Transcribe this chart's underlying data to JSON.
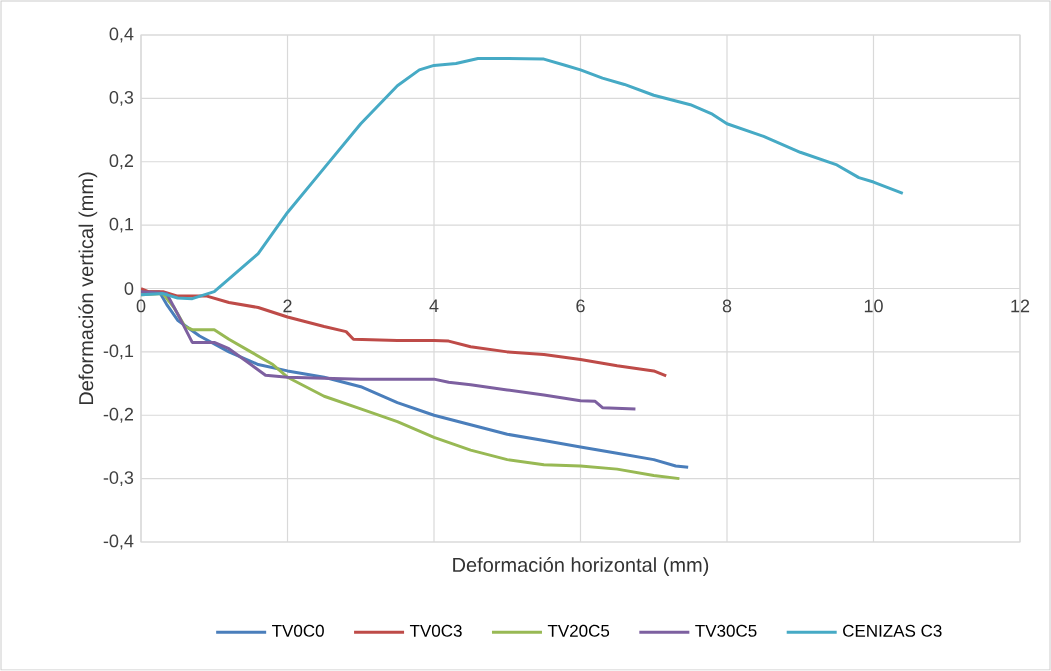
{
  "chart_data": {
    "type": "line",
    "xlabel": "Deformación horizontal (mm)",
    "ylabel": "Deformación vertical (mm)",
    "xlim": [
      0,
      12
    ],
    "xticks": [
      0,
      2,
      4,
      6,
      8,
      10,
      12
    ],
    "ylim": [
      -0.4,
      0.4
    ],
    "yticks": [
      {
        "value": -0.4,
        "label": "-0,4"
      },
      {
        "value": -0.3,
        "label": "-0,3"
      },
      {
        "value": -0.2,
        "label": "-0,2"
      },
      {
        "value": -0.1,
        "label": "-0,1"
      },
      0,
      {
        "value": 0.1,
        "label": "0,1"
      },
      {
        "value": 0.2,
        "label": "0,2"
      },
      {
        "value": 0.3,
        "label": "0,3"
      },
      {
        "value": 0.4,
        "label": "0,4"
      }
    ],
    "grid": true,
    "legend": "bottom",
    "marker": "none",
    "line_style": "solid",
    "series": [
      {
        "name": "TV0C0",
        "color": "#4a7ebb",
        "x": [
          0,
          0.25,
          0.35,
          0.5,
          0.8,
          1.2,
          1.6,
          2,
          2.5,
          3,
          3.5,
          4,
          4.5,
          5,
          5.5,
          6,
          6.5,
          7,
          7.3,
          7.47
        ],
        "values": [
          -0.005,
          -0.005,
          -0.025,
          -0.05,
          -0.075,
          -0.1,
          -0.12,
          -0.13,
          -0.14,
          -0.155,
          -0.18,
          -0.2,
          -0.215,
          -0.23,
          -0.24,
          -0.25,
          -0.26,
          -0.27,
          -0.28,
          -0.282
        ]
      },
      {
        "name": "TV0C3",
        "color": "#be4b48",
        "x": [
          0,
          0.1,
          0.3,
          0.5,
          0.9,
          1.2,
          1.6,
          2,
          2.5,
          2.8,
          2.9,
          3.5,
          4,
          4.2,
          4.5,
          5,
          5.5,
          6,
          6.5,
          7,
          7.17
        ],
        "values": [
          0,
          -0.005,
          -0.005,
          -0.012,
          -0.012,
          -0.022,
          -0.03,
          -0.045,
          -0.06,
          -0.068,
          -0.08,
          -0.082,
          -0.082,
          -0.083,
          -0.092,
          -0.1,
          -0.104,
          -0.112,
          -0.122,
          -0.13,
          -0.138
        ]
      },
      {
        "name": "TV20C5",
        "color": "#98b954",
        "x": [
          0,
          0.3,
          0.45,
          0.6,
          0.7,
          1.0,
          1.2,
          1.5,
          1.8,
          2,
          2.5,
          3,
          3.5,
          4,
          4.5,
          5,
          5.5,
          6,
          6.5,
          7,
          7.35
        ],
        "values": [
          -0.01,
          -0.008,
          -0.03,
          -0.06,
          -0.065,
          -0.065,
          -0.08,
          -0.1,
          -0.12,
          -0.14,
          -0.17,
          -0.19,
          -0.21,
          -0.235,
          -0.255,
          -0.27,
          -0.278,
          -0.28,
          -0.285,
          -0.295,
          -0.3
        ]
      },
      {
        "name": "TV30C5",
        "color": "#7d60a0",
        "x": [
          0,
          0.35,
          0.5,
          0.7,
          1.0,
          1.2,
          1.5,
          1.7,
          2,
          3,
          4,
          4.2,
          4.5,
          5,
          5.5,
          6,
          6.2,
          6.3,
          6.75
        ],
        "values": [
          -0.005,
          -0.008,
          -0.04,
          -0.085,
          -0.085,
          -0.095,
          -0.12,
          -0.137,
          -0.14,
          -0.143,
          -0.143,
          -0.148,
          -0.152,
          -0.16,
          -0.168,
          -0.177,
          -0.178,
          -0.188,
          -0.19
        ]
      },
      {
        "name": "CENIZAS C3",
        "color": "#46aac5",
        "x": [
          0,
          0.3,
          0.5,
          0.7,
          1,
          1.3,
          1.6,
          2,
          2.5,
          3,
          3.5,
          3.8,
          4,
          4.3,
          4.6,
          5,
          5.5,
          5.8,
          6,
          6.3,
          6.6,
          7,
          7.5,
          7.8,
          8,
          8.5,
          9,
          9.5,
          9.8,
          10,
          10.4
        ],
        "values": [
          -0.01,
          -0.008,
          -0.015,
          -0.016,
          -0.005,
          0.025,
          0.055,
          0.12,
          0.19,
          0.26,
          0.32,
          0.345,
          0.352,
          0.355,
          0.363,
          0.363,
          0.362,
          0.352,
          0.345,
          0.332,
          0.322,
          0.305,
          0.29,
          0.275,
          0.26,
          0.24,
          0.215,
          0.195,
          0.175,
          0.168,
          0.15
        ]
      }
    ]
  }
}
